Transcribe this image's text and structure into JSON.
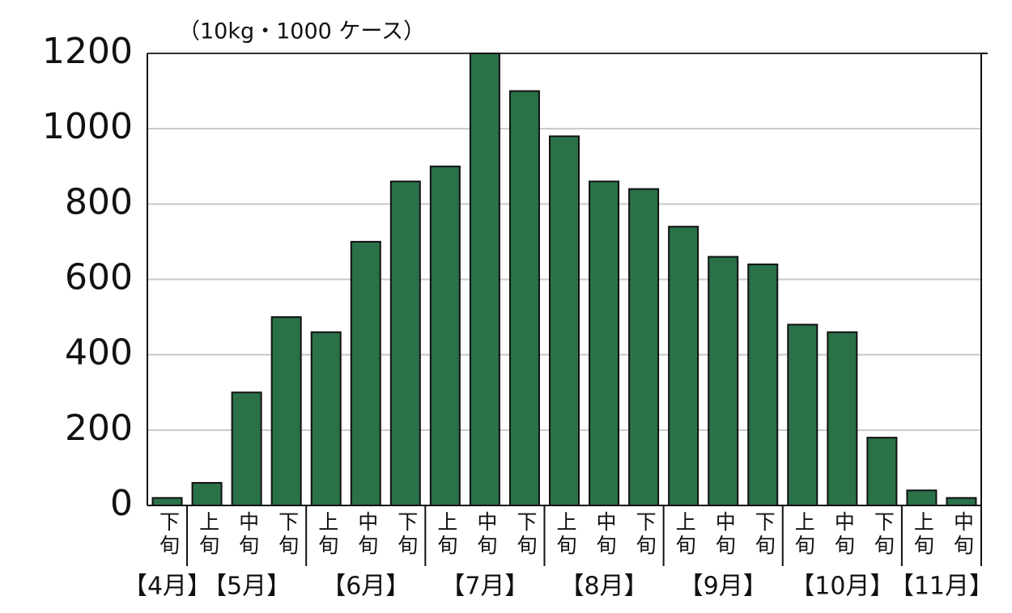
{
  "chart_data": {
    "type": "bar",
    "unit_label": "（10kg・1000 ケース）",
    "groups": [
      {
        "label": "【4月】",
        "categories": [
          "下旬"
        ]
      },
      {
        "label": "【5月】",
        "categories": [
          "上旬",
          "中旬",
          "下旬"
        ]
      },
      {
        "label": "【6月】",
        "categories": [
          "上旬",
          "中旬",
          "下旬"
        ]
      },
      {
        "label": "【7月】",
        "categories": [
          "上旬",
          "中旬",
          "下旬"
        ]
      },
      {
        "label": "【8月】",
        "categories": [
          "上旬",
          "中旬",
          "下旬"
        ]
      },
      {
        "label": "【9月】",
        "categories": [
          "上旬",
          "中旬",
          "下旬"
        ]
      },
      {
        "label": "【10月】",
        "categories": [
          "上旬",
          "中旬",
          "下旬"
        ]
      },
      {
        "label": "【11月】",
        "categories": [
          "上旬",
          "中旬"
        ]
      }
    ],
    "values": [
      20,
      60,
      300,
      500,
      460,
      700,
      860,
      900,
      1200,
      1100,
      980,
      860,
      840,
      740,
      660,
      640,
      480,
      460,
      180,
      40,
      20
    ],
    "color": "#2a7148",
    "ylim": [
      0,
      1200
    ],
    "yticks": [
      0,
      200,
      400,
      600,
      800,
      1000,
      1200
    ],
    "grid": true
  }
}
